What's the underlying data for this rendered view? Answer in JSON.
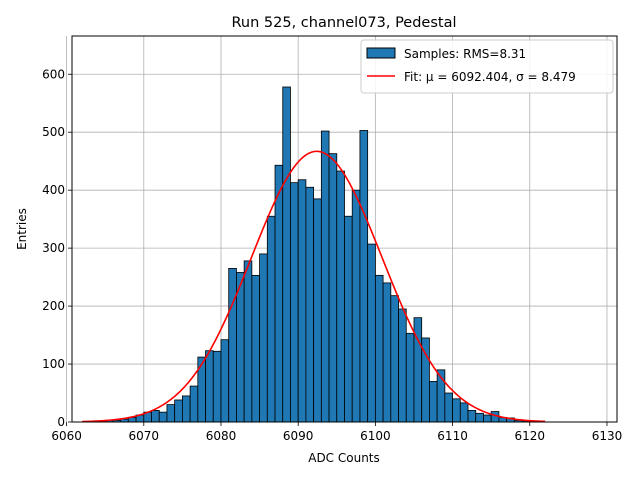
{
  "chart_data": {
    "type": "bar",
    "title": "Run 525, channel073, Pedestal",
    "xlabel": "ADC Counts",
    "ylabel": "Entries",
    "xlim": [
      6060.7,
      6131.3
    ],
    "ylim": [
      0,
      666
    ],
    "x_ticks": [
      6060,
      6070,
      6080,
      6090,
      6100,
      6110,
      6120,
      6130
    ],
    "y_ticks": [
      0,
      100,
      200,
      300,
      400,
      500,
      600
    ],
    "grid": true,
    "legend_position": "top-right",
    "bin_width": 1,
    "bin_start": 6064,
    "series": [
      {
        "name": "Samples: RMS=8.31",
        "kind": "histogram",
        "color": "#1f77b4",
        "edge_color": "#000000",
        "values": [
          2,
          3,
          3,
          5,
          8,
          12,
          17,
          20,
          17,
          30,
          38,
          45,
          62,
          112,
          123,
          122,
          142,
          265,
          258,
          278,
          253,
          290,
          355,
          443,
          578,
          413,
          418,
          405,
          385,
          502,
          463,
          433,
          355,
          400,
          503,
          307,
          253,
          240,
          218,
          195,
          153,
          180,
          145,
          70,
          90,
          50,
          40,
          33,
          20,
          15,
          12,
          18,
          8,
          7,
          3,
          2,
          1
        ]
      },
      {
        "name": "Fit: μ = 6092.404, σ = 8.479",
        "kind": "gaussian_fit",
        "color": "#ff0000",
        "mu": 6092.404,
        "sigma": 8.479,
        "amplitude": 467,
        "x_range": [
          6062,
          6122
        ]
      }
    ]
  }
}
